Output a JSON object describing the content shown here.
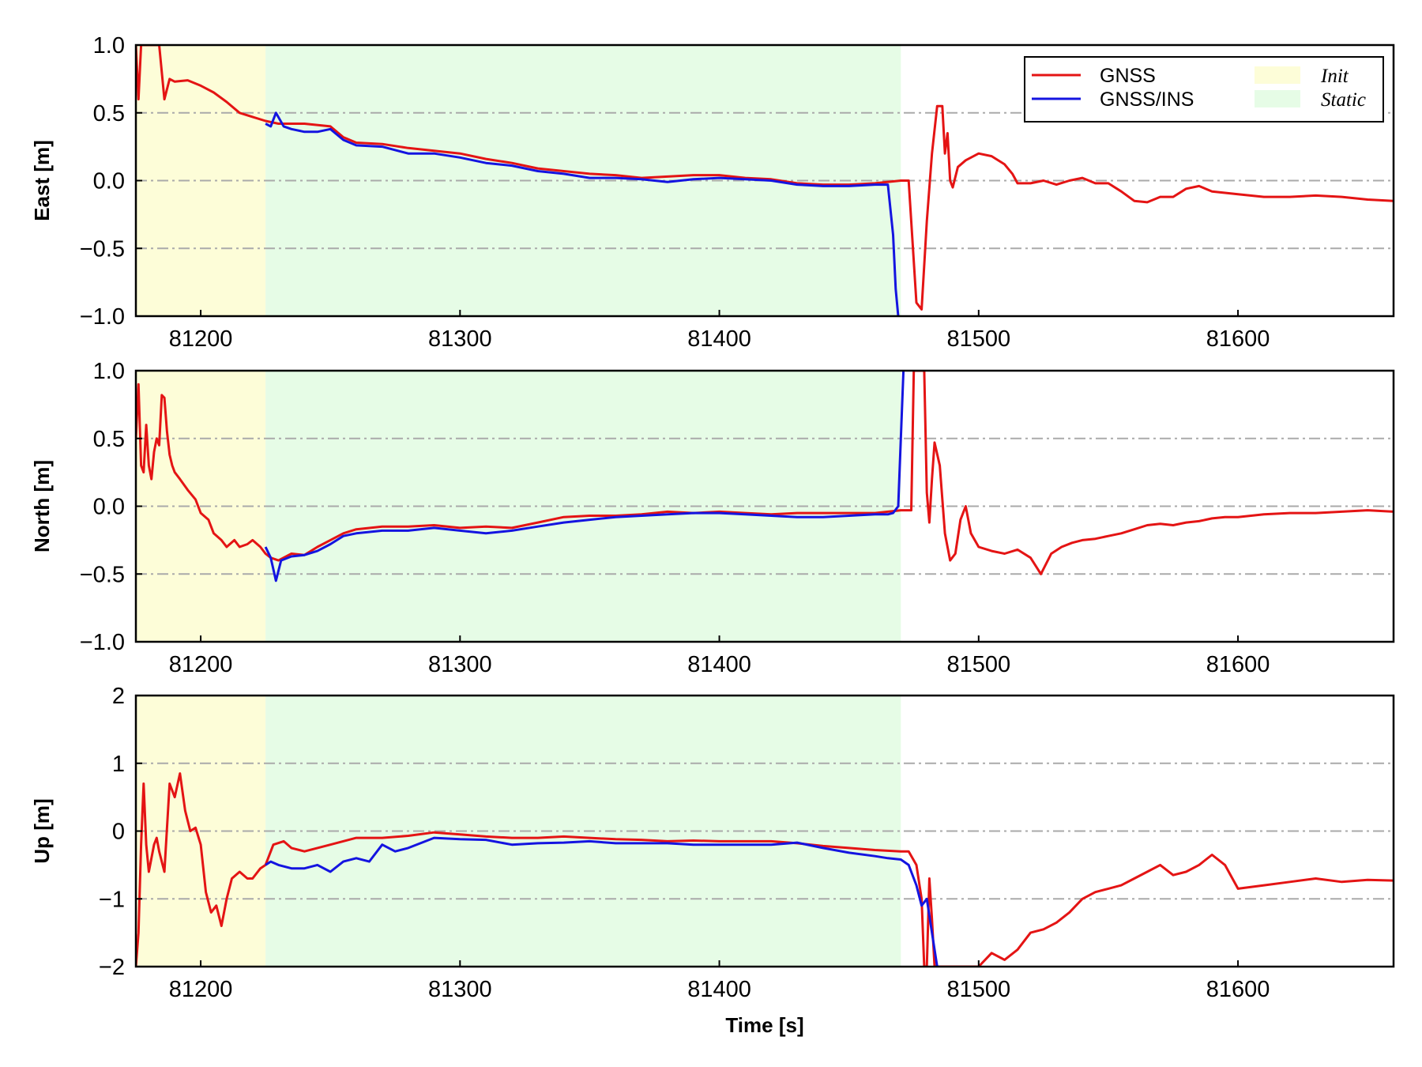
{
  "colors": {
    "gnss": "#e41414",
    "gnss_ins": "#1414e0",
    "init_region": "#fdfdd8",
    "static_region": "#e6fce6",
    "grid": "#aaaaaa"
  },
  "legend": {
    "placement": "top-right",
    "series": [
      {
        "key": "gnss",
        "label": "GNSS"
      },
      {
        "key": "gnss_ins",
        "label": "GNSS/INS"
      }
    ],
    "regions": [
      {
        "key": "init_region",
        "label": "Init"
      },
      {
        "key": "static_region",
        "label": "Static"
      }
    ]
  },
  "xlabel": "Time [s]",
  "chart_data": [
    {
      "type": "line",
      "ylabel": "East [m]",
      "xlim": [
        81175,
        81660
      ],
      "ylim": [
        -1.0,
        1.0
      ],
      "xticks": [
        81200,
        81300,
        81400,
        81500,
        81600
      ],
      "yticks": [
        1.0,
        0.5,
        0.0,
        -0.5,
        -1.0
      ],
      "ytick_labels": [
        "1.0",
        "0.5",
        "0.0",
        "−0.5",
        "−1.0"
      ],
      "grid": "horizontal dash-dot",
      "regions": [
        {
          "name": "Init",
          "x": [
            81175,
            81225
          ]
        },
        {
          "name": "Static",
          "x": [
            81225,
            81470
          ]
        }
      ],
      "series": [
        {
          "name": "GNSS",
          "x": [
            81175,
            81176,
            81177,
            81178,
            81179,
            81180,
            81182,
            81184,
            81186,
            81188,
            81190,
            81195,
            81200,
            81205,
            81210,
            81215,
            81220,
            81225,
            81230,
            81240,
            81250,
            81255,
            81260,
            81270,
            81280,
            81290,
            81300,
            81310,
            81320,
            81330,
            81340,
            81350,
            81360,
            81370,
            81380,
            81390,
            81400,
            81410,
            81420,
            81430,
            81440,
            81450,
            81460,
            81470,
            81473,
            81476,
            81478,
            81480,
            81482,
            81484,
            81486,
            81487,
            81488,
            81489,
            81490,
            81492,
            81495,
            81500,
            81505,
            81510,
            81513,
            81515,
            81520,
            81525,
            81530,
            81535,
            81540,
            81545,
            81550,
            81555,
            81560,
            81565,
            81570,
            81575,
            81580,
            81585,
            81590,
            81600,
            81610,
            81620,
            81630,
            81640,
            81650,
            81660
          ],
          "y": [
            1.0,
            0.6,
            1.0,
            1.0,
            1.0,
            1.0,
            1.0,
            1.0,
            0.6,
            0.75,
            0.73,
            0.74,
            0.7,
            0.65,
            0.58,
            0.5,
            0.47,
            0.44,
            0.42,
            0.42,
            0.4,
            0.32,
            0.28,
            0.27,
            0.24,
            0.22,
            0.2,
            0.16,
            0.13,
            0.09,
            0.07,
            0.05,
            0.04,
            0.02,
            0.03,
            0.04,
            0.04,
            0.02,
            0.01,
            -0.02,
            -0.03,
            -0.03,
            -0.02,
            0.0,
            0.0,
            -0.9,
            -0.95,
            -0.3,
            0.2,
            0.55,
            0.55,
            0.2,
            0.35,
            0.0,
            -0.05,
            0.1,
            0.15,
            0.2,
            0.18,
            0.12,
            0.05,
            -0.02,
            -0.02,
            0.0,
            -0.03,
            0.0,
            0.02,
            -0.02,
            -0.02,
            -0.08,
            -0.15,
            -0.16,
            -0.12,
            -0.12,
            -0.06,
            -0.04,
            -0.08,
            -0.1,
            -0.12,
            -0.12,
            -0.11,
            -0.12,
            -0.14,
            -0.15
          ]
        },
        {
          "name": "GNSS/INS",
          "x": [
            81225,
            81227,
            81229,
            81232,
            81235,
            81240,
            81245,
            81250,
            81255,
            81260,
            81270,
            81280,
            81290,
            81300,
            81310,
            81320,
            81330,
            81340,
            81350,
            81360,
            81370,
            81380,
            81390,
            81400,
            81410,
            81420,
            81430,
            81440,
            81450,
            81460,
            81465,
            81467,
            81468,
            81469
          ],
          "y": [
            0.42,
            0.4,
            0.5,
            0.4,
            0.38,
            0.36,
            0.36,
            0.38,
            0.3,
            0.26,
            0.25,
            0.2,
            0.2,
            0.17,
            0.13,
            0.11,
            0.07,
            0.05,
            0.02,
            0.02,
            0.01,
            -0.01,
            0.01,
            0.02,
            0.01,
            0.0,
            -0.03,
            -0.04,
            -0.04,
            -0.03,
            -0.03,
            -0.4,
            -0.8,
            -1.0
          ]
        }
      ]
    },
    {
      "type": "line",
      "ylabel": "North [m]",
      "xlim": [
        81175,
        81660
      ],
      "ylim": [
        -1.0,
        1.0
      ],
      "xticks": [
        81200,
        81300,
        81400,
        81500,
        81600
      ],
      "yticks": [
        1.0,
        0.5,
        0.0,
        -0.5,
        -1.0
      ],
      "ytick_labels": [
        "1.0",
        "0.5",
        "0.0",
        "−0.5",
        "−1.0"
      ],
      "grid": "horizontal dash-dot",
      "regions": [
        {
          "name": "Init",
          "x": [
            81175,
            81225
          ]
        },
        {
          "name": "Static",
          "x": [
            81225,
            81470
          ]
        }
      ],
      "series": [
        {
          "name": "GNSS",
          "x": [
            81175,
            81176,
            81177,
            81178,
            81179,
            81180,
            81181,
            81182,
            81183,
            81184,
            81185,
            81186,
            81187,
            81188,
            81189,
            81190,
            81192,
            81195,
            81198,
            81200,
            81203,
            81205,
            81208,
            81210,
            81213,
            81215,
            81218,
            81220,
            81223,
            81225,
            81227,
            81230,
            81235,
            81240,
            81245,
            81250,
            81255,
            81260,
            81270,
            81280,
            81290,
            81300,
            81310,
            81320,
            81330,
            81340,
            81350,
            81360,
            81370,
            81380,
            81390,
            81400,
            81410,
            81420,
            81430,
            81440,
            81450,
            81460,
            81470,
            81472,
            81474,
            81475,
            81476,
            81477,
            81478,
            81479,
            81480,
            81481,
            81482,
            81483,
            81485,
            81487,
            81489,
            81491,
            81493,
            81495,
            81497,
            81500,
            81505,
            81510,
            81515,
            81520,
            81524,
            81528,
            81532,
            81536,
            81540,
            81545,
            81550,
            81555,
            81560,
            81565,
            81570,
            81575,
            81580,
            81585,
            81590,
            81595,
            81600,
            81610,
            81620,
            81630,
            81640,
            81650,
            81660
          ],
          "y": [
            0.5,
            0.9,
            0.3,
            0.25,
            0.6,
            0.3,
            0.2,
            0.4,
            0.5,
            0.45,
            0.82,
            0.8,
            0.55,
            0.38,
            0.3,
            0.25,
            0.2,
            0.12,
            0.05,
            -0.05,
            -0.1,
            -0.2,
            -0.25,
            -0.3,
            -0.25,
            -0.3,
            -0.28,
            -0.25,
            -0.3,
            -0.35,
            -0.38,
            -0.4,
            -0.35,
            -0.36,
            -0.3,
            -0.25,
            -0.2,
            -0.17,
            -0.15,
            -0.15,
            -0.14,
            -0.16,
            -0.15,
            -0.16,
            -0.12,
            -0.08,
            -0.07,
            -0.07,
            -0.06,
            -0.04,
            -0.05,
            -0.04,
            -0.05,
            -0.06,
            -0.05,
            -0.05,
            -0.05,
            -0.05,
            -0.03,
            -0.03,
            -0.03,
            1.0,
            1.0,
            1.0,
            1.0,
            1.0,
            0.1,
            -0.12,
            0.2,
            0.47,
            0.3,
            -0.2,
            -0.4,
            -0.35,
            -0.1,
            0.0,
            -0.2,
            -0.3,
            -0.33,
            -0.35,
            -0.32,
            -0.38,
            -0.5,
            -0.35,
            -0.3,
            -0.27,
            -0.25,
            -0.24,
            -0.22,
            -0.2,
            -0.17,
            -0.14,
            -0.13,
            -0.14,
            -0.12,
            -0.11,
            -0.09,
            -0.08,
            -0.08,
            -0.06,
            -0.05,
            -0.05,
            -0.04,
            -0.03,
            -0.04
          ]
        },
        {
          "name": "GNSS/INS",
          "x": [
            81225,
            81227,
            81229,
            81231,
            81235,
            81240,
            81245,
            81250,
            81255,
            81260,
            81270,
            81280,
            81290,
            81300,
            81310,
            81320,
            81330,
            81340,
            81350,
            81360,
            81370,
            81380,
            81390,
            81400,
            81410,
            81420,
            81430,
            81440,
            81450,
            81460,
            81465,
            81467,
            81469,
            81470,
            81471
          ],
          "y": [
            -0.3,
            -0.38,
            -0.55,
            -0.4,
            -0.37,
            -0.36,
            -0.33,
            -0.28,
            -0.22,
            -0.2,
            -0.18,
            -0.18,
            -0.16,
            -0.18,
            -0.2,
            -0.18,
            -0.15,
            -0.12,
            -0.1,
            -0.08,
            -0.07,
            -0.06,
            -0.05,
            -0.05,
            -0.06,
            -0.07,
            -0.08,
            -0.08,
            -0.07,
            -0.06,
            -0.06,
            -0.05,
            0.0,
            0.5,
            1.0
          ]
        }
      ]
    },
    {
      "type": "line",
      "ylabel": "Up [m]",
      "xlim": [
        81175,
        81660
      ],
      "ylim": [
        -2,
        2
      ],
      "xticks": [
        81200,
        81300,
        81400,
        81500,
        81600
      ],
      "yticks": [
        2,
        1,
        0,
        -1,
        -2
      ],
      "ytick_labels": [
        "2",
        "1",
        "0",
        "−1",
        "−2"
      ],
      "grid": "horizontal dash-dot",
      "regions": [
        {
          "name": "Init",
          "x": [
            81175,
            81225
          ]
        },
        {
          "name": "Static",
          "x": [
            81225,
            81470
          ]
        }
      ],
      "series": [
        {
          "name": "GNSS",
          "x": [
            81175,
            81176,
            81177,
            81178,
            81179,
            81180,
            81181,
            81182,
            81183,
            81184,
            81186,
            81188,
            81190,
            81192,
            81194,
            81196,
            81198,
            81200,
            81202,
            81204,
            81206,
            81208,
            81210,
            81212,
            81215,
            81218,
            81220,
            81223,
            81225,
            81228,
            81232,
            81235,
            81240,
            81245,
            81250,
            81260,
            81270,
            81280,
            81290,
            81300,
            81310,
            81320,
            81330,
            81340,
            81350,
            81360,
            81370,
            81380,
            81390,
            81400,
            81410,
            81420,
            81430,
            81440,
            81450,
            81460,
            81470,
            81473,
            81476,
            81478,
            81479,
            81480,
            81481,
            81482,
            81483,
            81484,
            81485,
            81490,
            81495,
            81500,
            81505,
            81510,
            81515,
            81520,
            81525,
            81530,
            81535,
            81540,
            81545,
            81550,
            81555,
            81560,
            81565,
            81570,
            81575,
            81580,
            81585,
            81590,
            81595,
            81600,
            81610,
            81620,
            81630,
            81640,
            81650,
            81660
          ],
          "y": [
            -2.0,
            -1.5,
            -0.2,
            0.7,
            -0.2,
            -0.6,
            -0.4,
            -0.2,
            -0.1,
            -0.3,
            -0.6,
            0.7,
            0.5,
            0.85,
            0.3,
            0.0,
            0.05,
            -0.2,
            -0.9,
            -1.2,
            -1.1,
            -1.4,
            -1.0,
            -0.7,
            -0.6,
            -0.7,
            -0.7,
            -0.55,
            -0.5,
            -0.2,
            -0.15,
            -0.25,
            -0.3,
            -0.25,
            -0.2,
            -0.1,
            -0.1,
            -0.07,
            -0.02,
            -0.05,
            -0.08,
            -0.1,
            -0.1,
            -0.08,
            -0.1,
            -0.12,
            -0.13,
            -0.15,
            -0.14,
            -0.15,
            -0.15,
            -0.15,
            -0.18,
            -0.22,
            -0.25,
            -0.28,
            -0.3,
            -0.3,
            -0.5,
            -1.0,
            -2.0,
            -2.0,
            -0.7,
            -1.3,
            -2.0,
            -2.0,
            -2.0,
            -2.0,
            -2.0,
            -2.0,
            -1.8,
            -1.9,
            -1.75,
            -1.5,
            -1.45,
            -1.35,
            -1.2,
            -1.0,
            -0.9,
            -0.85,
            -0.8,
            -0.7,
            -0.6,
            -0.5,
            -0.65,
            -0.6,
            -0.5,
            -0.35,
            -0.5,
            -0.85,
            -0.8,
            -0.75,
            -0.7,
            -0.75,
            -0.72,
            -0.73
          ]
        },
        {
          "name": "GNSS/INS",
          "x": [
            81225,
            81227,
            81230,
            81235,
            81240,
            81245,
            81250,
            81255,
            81260,
            81265,
            81270,
            81275,
            81280,
            81290,
            81300,
            81310,
            81320,
            81330,
            81340,
            81350,
            81360,
            81370,
            81380,
            81390,
            81400,
            81410,
            81420,
            81430,
            81440,
            81450,
            81460,
            81465,
            81470,
            81473,
            81476,
            81478,
            81480,
            81482,
            81484,
            81485
          ],
          "y": [
            -0.5,
            -0.45,
            -0.5,
            -0.55,
            -0.55,
            -0.5,
            -0.6,
            -0.45,
            -0.4,
            -0.45,
            -0.2,
            -0.3,
            -0.25,
            -0.1,
            -0.12,
            -0.13,
            -0.2,
            -0.18,
            -0.17,
            -0.15,
            -0.18,
            -0.18,
            -0.18,
            -0.2,
            -0.2,
            -0.2,
            -0.2,
            -0.17,
            -0.25,
            -0.32,
            -0.37,
            -0.4,
            -0.42,
            -0.5,
            -0.8,
            -1.1,
            -1.0,
            -1.5,
            -2.0,
            -2.0
          ]
        }
      ]
    }
  ]
}
